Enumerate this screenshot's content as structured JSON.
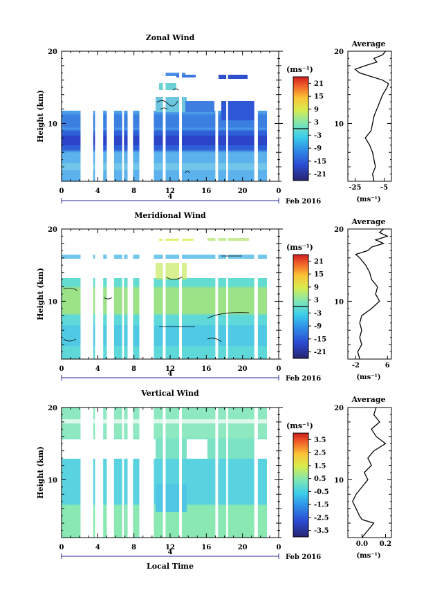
{
  "x_label": "Local Time",
  "date_label": "Feb 2016",
  "day_label": "4",
  "panels": [
    {
      "title": "Zonal Wind",
      "ylabel": "Height (km)",
      "units": "(ms⁻¹)",
      "avg_title": "Average",
      "avg_units": "(ms⁻¹)",
      "cbar_ticks": [
        "21",
        "15",
        "9",
        "3",
        "-3",
        "-9",
        "-15",
        "-21"
      ],
      "avg_xticks": [
        "-25",
        "-5"
      ]
    },
    {
      "title": "Meridional Wind",
      "ylabel": "Height (km)",
      "units": "(ms⁻¹)",
      "avg_title": "Average",
      "avg_units": "(ms⁻¹)",
      "cbar_ticks": [
        "21",
        "15",
        "9",
        "3",
        "-3",
        "-9",
        "-15",
        "-21"
      ],
      "avg_xticks": [
        "-2",
        "6"
      ]
    },
    {
      "title": "Vertical Wind",
      "ylabel": "Height (km)",
      "units": "(ms⁻¹)",
      "avg_title": "Average",
      "avg_units": "(ms⁻¹)",
      "cbar_ticks": [
        "3.5",
        "2.5",
        "1.5",
        "0.5",
        "-0.5",
        "-1.5",
        "-2.5",
        "-3.5"
      ],
      "avg_xticks": [
        "0.0",
        "0.2"
      ]
    }
  ],
  "chart_data": [
    {
      "type": "heatmap",
      "title": "Zonal Wind",
      "xlabel": "",
      "ylabel": "Height (km)",
      "x_ticks": [
        "0",
        "4",
        "8",
        "12",
        "16",
        "20",
        "0"
      ],
      "y_ticks": [
        "10",
        "20"
      ],
      "xlim": [
        0,
        24
      ],
      "ylim": [
        2,
        20
      ],
      "colorbar": {
        "label": "(ms⁻¹)",
        "range": [
          -24,
          24
        ],
        "ticks": [
          21,
          15,
          9,
          3,
          -3,
          -9,
          -15,
          -21
        ]
      },
      "gaps_hours": [
        [
          2.1,
          3.5
        ],
        [
          3.7,
          4.6
        ],
        [
          5.0,
          5.8
        ],
        [
          6.7,
          6.9
        ],
        [
          7.3,
          7.9
        ],
        [
          8.6,
          10.2
        ],
        [
          11.2,
          11.5
        ],
        [
          13.0,
          13.3
        ],
        [
          17.0,
          17.3
        ],
        [
          18.2,
          18.4
        ],
        [
          21.3,
          21.7
        ],
        [
          22.7,
          24.0
        ]
      ],
      "profile": [
        [
          2,
          -12
        ],
        [
          3,
          -13
        ],
        [
          4,
          -11
        ],
        [
          5,
          -12
        ],
        [
          6,
          -13
        ],
        [
          7,
          -15
        ],
        [
          8,
          -18
        ],
        [
          9,
          -14
        ],
        [
          10,
          -13
        ],
        [
          11,
          -12
        ],
        [
          12,
          -10
        ],
        [
          13,
          -8
        ],
        [
          14,
          -6
        ],
        [
          15,
          -3
        ],
        [
          15.5,
          -2
        ],
        [
          16,
          -6
        ],
        [
          16.5,
          -14
        ],
        [
          17,
          -22
        ],
        [
          17.5,
          -25
        ],
        [
          18,
          -18
        ],
        [
          18.5,
          -10
        ],
        [
          19,
          -12
        ],
        [
          19.5,
          -6
        ],
        [
          20,
          -4
        ]
      ]
    },
    {
      "type": "heatmap",
      "title": "Meridional Wind",
      "xlabel": "",
      "ylabel": "Height (km)",
      "x_ticks": [
        "0",
        "4",
        "8",
        "12",
        "16",
        "20",
        "0"
      ],
      "y_ticks": [
        "10",
        "20"
      ],
      "xlim": [
        0,
        24
      ],
      "ylim": [
        2,
        20
      ],
      "colorbar": {
        "label": "(ms⁻¹)",
        "range": [
          -24,
          24
        ],
        "ticks": [
          21,
          15,
          9,
          3,
          -3,
          -9,
          -15,
          -21
        ]
      },
      "gaps_hours": [
        [
          2.1,
          3.5
        ],
        [
          3.7,
          4.6
        ],
        [
          5.0,
          5.8
        ],
        [
          6.7,
          6.9
        ],
        [
          7.3,
          7.9
        ],
        [
          8.6,
          10.2
        ],
        [
          11.2,
          11.5
        ],
        [
          13.0,
          13.3
        ],
        [
          17.0,
          17.3
        ],
        [
          18.2,
          18.4
        ],
        [
          21.3,
          21.7
        ],
        [
          22.7,
          24.0
        ]
      ],
      "profile": [
        [
          2,
          -1
        ],
        [
          3,
          -1.5
        ],
        [
          4,
          -0.5
        ],
        [
          5,
          -1
        ],
        [
          6,
          -0.5
        ],
        [
          7,
          -1
        ],
        [
          8,
          -0.5
        ],
        [
          9,
          2
        ],
        [
          10,
          4
        ],
        [
          11,
          3
        ],
        [
          12,
          3.5
        ],
        [
          13,
          2
        ],
        [
          14,
          1.5
        ],
        [
          15,
          0.5
        ],
        [
          16,
          -1
        ],
        [
          16.5,
          -2
        ],
        [
          17,
          1
        ],
        [
          17.5,
          2
        ],
        [
          18,
          5
        ],
        [
          18.5,
          3
        ],
        [
          19,
          6
        ],
        [
          19.5,
          4
        ],
        [
          20,
          5
        ]
      ]
    },
    {
      "type": "heatmap",
      "title": "Vertical Wind",
      "xlabel": "Local Time",
      "ylabel": "Height (km)",
      "x_ticks": [
        "0",
        "4",
        "8",
        "12",
        "16",
        "20",
        "0"
      ],
      "y_ticks": [
        "10",
        "20"
      ],
      "xlim": [
        0,
        24
      ],
      "ylim": [
        2,
        20
      ],
      "colorbar": {
        "label": "(ms⁻¹)",
        "range": [
          -4,
          4
        ],
        "ticks": [
          3.5,
          2.5,
          1.5,
          0.5,
          -0.5,
          -1.5,
          -2.5,
          -3.5
        ]
      },
      "gaps_hours": [
        [
          2.1,
          3.5
        ],
        [
          3.7,
          4.6
        ],
        [
          5.0,
          5.8
        ],
        [
          6.7,
          6.9
        ],
        [
          7.3,
          7.9
        ],
        [
          8.6,
          10.2
        ],
        [
          11.2,
          11.5
        ],
        [
          13.0,
          13.3
        ],
        [
          17.0,
          17.3
        ],
        [
          18.2,
          18.4
        ],
        [
          21.3,
          21.7
        ],
        [
          22.7,
          24.0
        ]
      ],
      "profile": [
        [
          2,
          0.0
        ],
        [
          3,
          0.05
        ],
        [
          4,
          0.1
        ],
        [
          4.5,
          0.0
        ],
        [
          5,
          -0.02
        ],
        [
          6,
          -0.05
        ],
        [
          7,
          -0.08
        ],
        [
          8,
          -0.05
        ],
        [
          9,
          0.0
        ],
        [
          10,
          0.05
        ],
        [
          11,
          0.02
        ],
        [
          12,
          0.08
        ],
        [
          13,
          0.05
        ],
        [
          14,
          0.1
        ],
        [
          15,
          0.2
        ],
        [
          16,
          0.12
        ],
        [
          17,
          0.08
        ],
        [
          18,
          0.15
        ],
        [
          19,
          0.1
        ],
        [
          20,
          0.12
        ]
      ]
    }
  ]
}
